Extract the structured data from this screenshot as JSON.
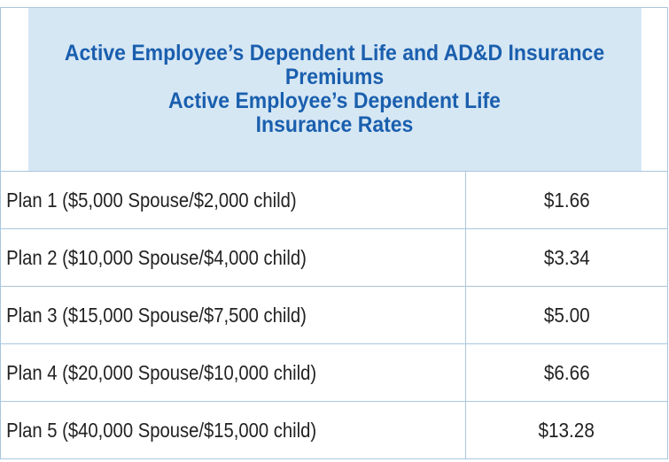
{
  "table": {
    "header": {
      "line1": "Active Employee’s Dependent Life and AD&D Insurance",
      "line2": "Premiums",
      "line3": "Active Employee’s Dependent Life",
      "line4": "Insurance Rates"
    },
    "rows": [
      {
        "plan": "Plan 1 ($5,000 Spouse/$2,000 child)",
        "rate": "$1.66"
      },
      {
        "plan": "Plan 2 ($10,000 Spouse/$4,000 child)",
        "rate": "$3.34"
      },
      {
        "plan": "Plan 3 ($15,000 Spouse/$7,500 child)",
        "rate": "$5.00"
      },
      {
        "plan": "Plan 4 ($20,000 Spouse/$10,000 child)",
        "rate": "$6.66"
      },
      {
        "plan": "Plan 5 ($40,000 Spouse/$15,000 child)",
        "rate": "$13.28"
      }
    ]
  },
  "colors": {
    "header_background": "#d6e7f4",
    "header_text": "#1a5fae",
    "border": "#a9c6dd",
    "body_text": "#222222"
  }
}
